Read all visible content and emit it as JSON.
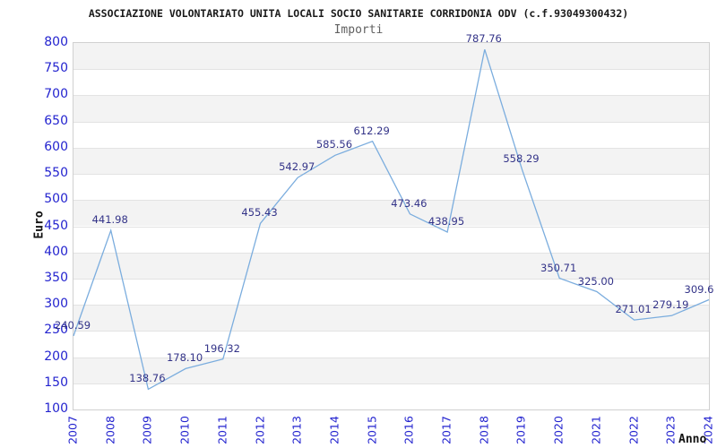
{
  "chart_data": {
    "type": "line",
    "title": "ASSOCIAZIONE VOLONTARIATO UNITA LOCALI SOCIO SANITARIE CORRIDONIA ODV (c.f.93049300432)",
    "subtitle": "Importi",
    "ylabel": "Euro",
    "xlabel": "Anno",
    "categories": [
      "2007",
      "2008",
      "2009",
      "2010",
      "2011",
      "2012",
      "2013",
      "2014",
      "2015",
      "2016",
      "2017",
      "2018",
      "2019",
      "2020",
      "2021",
      "2022",
      "2023",
      "2024"
    ],
    "values": [
      240.59,
      441.98,
      138.76,
      178.1,
      196.32,
      455.43,
      542.97,
      585.56,
      612.29,
      473.46,
      438.95,
      787.76,
      558.29,
      350.71,
      325.0,
      271.01,
      279.19,
      309.6
    ],
    "point_labels": [
      "240.59",
      "441.98",
      "138.76",
      "178.10",
      "196.32",
      "455.43",
      "542.97",
      "585.56",
      "612.29",
      "473.46",
      "438.95",
      "787.76",
      "558.29",
      "350.71",
      "325.00",
      "271.01",
      "279.19",
      "309.6"
    ],
    "ylim": [
      100,
      800
    ],
    "ytick_step": 50,
    "yticks": [
      100,
      150,
      200,
      250,
      300,
      350,
      400,
      450,
      500,
      550,
      600,
      650,
      700,
      750,
      800
    ],
    "grid": "alternating-horizontal-bands",
    "legend": "none",
    "colors": {
      "line": "#7badde",
      "axis_text": "#2424cf",
      "data_label": "#333388",
      "band": "#f3f3f3",
      "gridline": "#e3e3e3",
      "plot_border": "#d0d0d0",
      "title": "#1a1a1a",
      "subtitle": "#606060"
    }
  }
}
